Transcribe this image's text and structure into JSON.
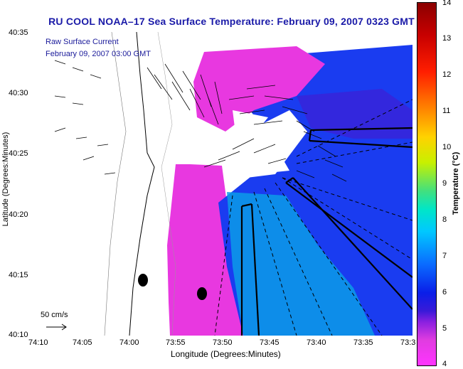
{
  "title": "RU COOL  NOAA–17  Sea Surface Temperature:  February 09, 2007 0323 GMT",
  "overlay": {
    "raw_label": "Raw Surface Current",
    "raw_date": "February 09, 2007 03:00 GMT",
    "scale_label": "50 cm/s"
  },
  "axes": {
    "ylabel": "Latitude (Degrees:Minutes)",
    "xlabel": "Longitude (Degrees:Minutes)",
    "yticks": [
      "40:35",
      "40:30",
      "40:25",
      "40:20",
      "40:15",
      "40:10"
    ],
    "xticks": [
      "74:10",
      "74:05",
      "74:00",
      "73:55",
      "73:50",
      "73:45",
      "73:40",
      "73:35",
      "73:3"
    ]
  },
  "colorbar": {
    "label": "Temperature (°C)",
    "ticks": [
      "14",
      "13",
      "12",
      "11",
      "10",
      "9",
      "8",
      "7",
      "6",
      "5",
      "4"
    ],
    "range": [
      4,
      14
    ]
  },
  "markers": [
    {
      "name": "buoy-marker",
      "lon": "74:00.5",
      "lat": "40:14.5"
    },
    {
      "name": "buoy-marker",
      "lon": "73:52.6",
      "lat": "40:13.5"
    }
  ]
}
